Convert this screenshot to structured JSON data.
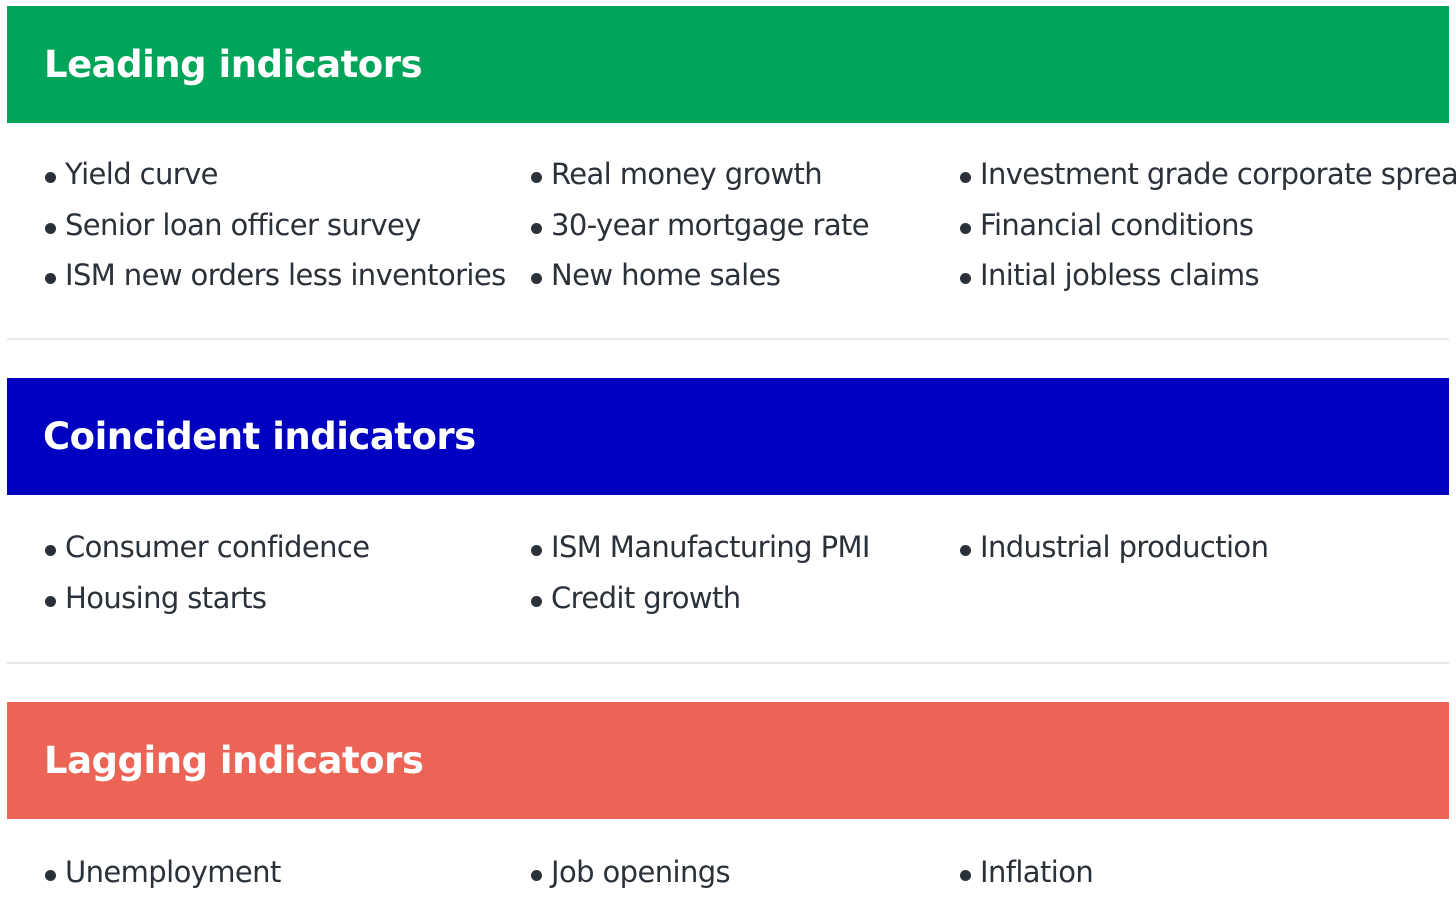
{
  "sections": [
    {
      "title": "Leading indicators",
      "color": "#00a55a",
      "columns": [
        [
          "Yield curve",
          "Senior loan officer survey",
          "ISM new orders less inventories"
        ],
        [
          "Real money growth",
          "30-year mortgage rate",
          "New home sales"
        ],
        [
          "Investment grade corporate spreads",
          "Financial conditions",
          "Initial jobless claims"
        ]
      ]
    },
    {
      "title": "Coincident indicators",
      "color": "#0000c0",
      "columns": [
        [
          "Consumer confidence",
          "Housing starts"
        ],
        [
          "ISM Manufacturing PMI",
          "Credit growth"
        ],
        [
          "Industrial production"
        ]
      ]
    },
    {
      "title": "Lagging indicators",
      "color": "#eb6455",
      "columns": [
        [
          "Unemployment"
        ],
        [
          "Job openings"
        ],
        [
          "Inflation"
        ]
      ]
    }
  ]
}
